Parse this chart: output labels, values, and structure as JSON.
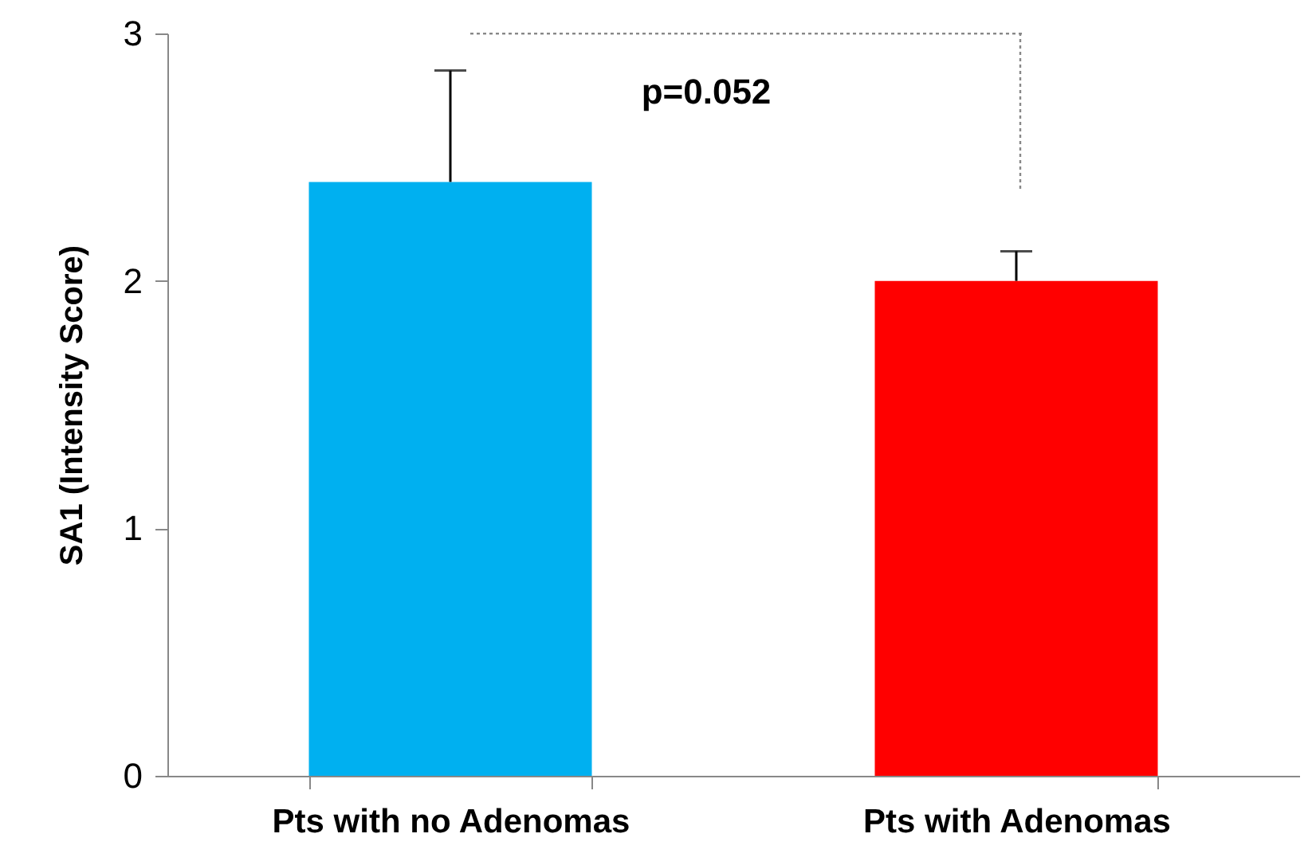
{
  "chart_data": {
    "type": "bar",
    "categories": [
      "Pts with no Adenomas",
      "Pts with Adenomas"
    ],
    "values": [
      2.4,
      2.0
    ],
    "colors": [
      "#00b0f0",
      "#ff0000"
    ],
    "errors": [
      [
        2.4,
        2.85
      ],
      [
        2.0,
        2.12
      ]
    ],
    "ylabel": "SA1 (Intensity Score)",
    "ylim": [
      0,
      3
    ],
    "yticks": [
      0,
      1,
      2,
      3
    ],
    "grid": false,
    "annotations": [
      "p=0.052"
    ]
  }
}
